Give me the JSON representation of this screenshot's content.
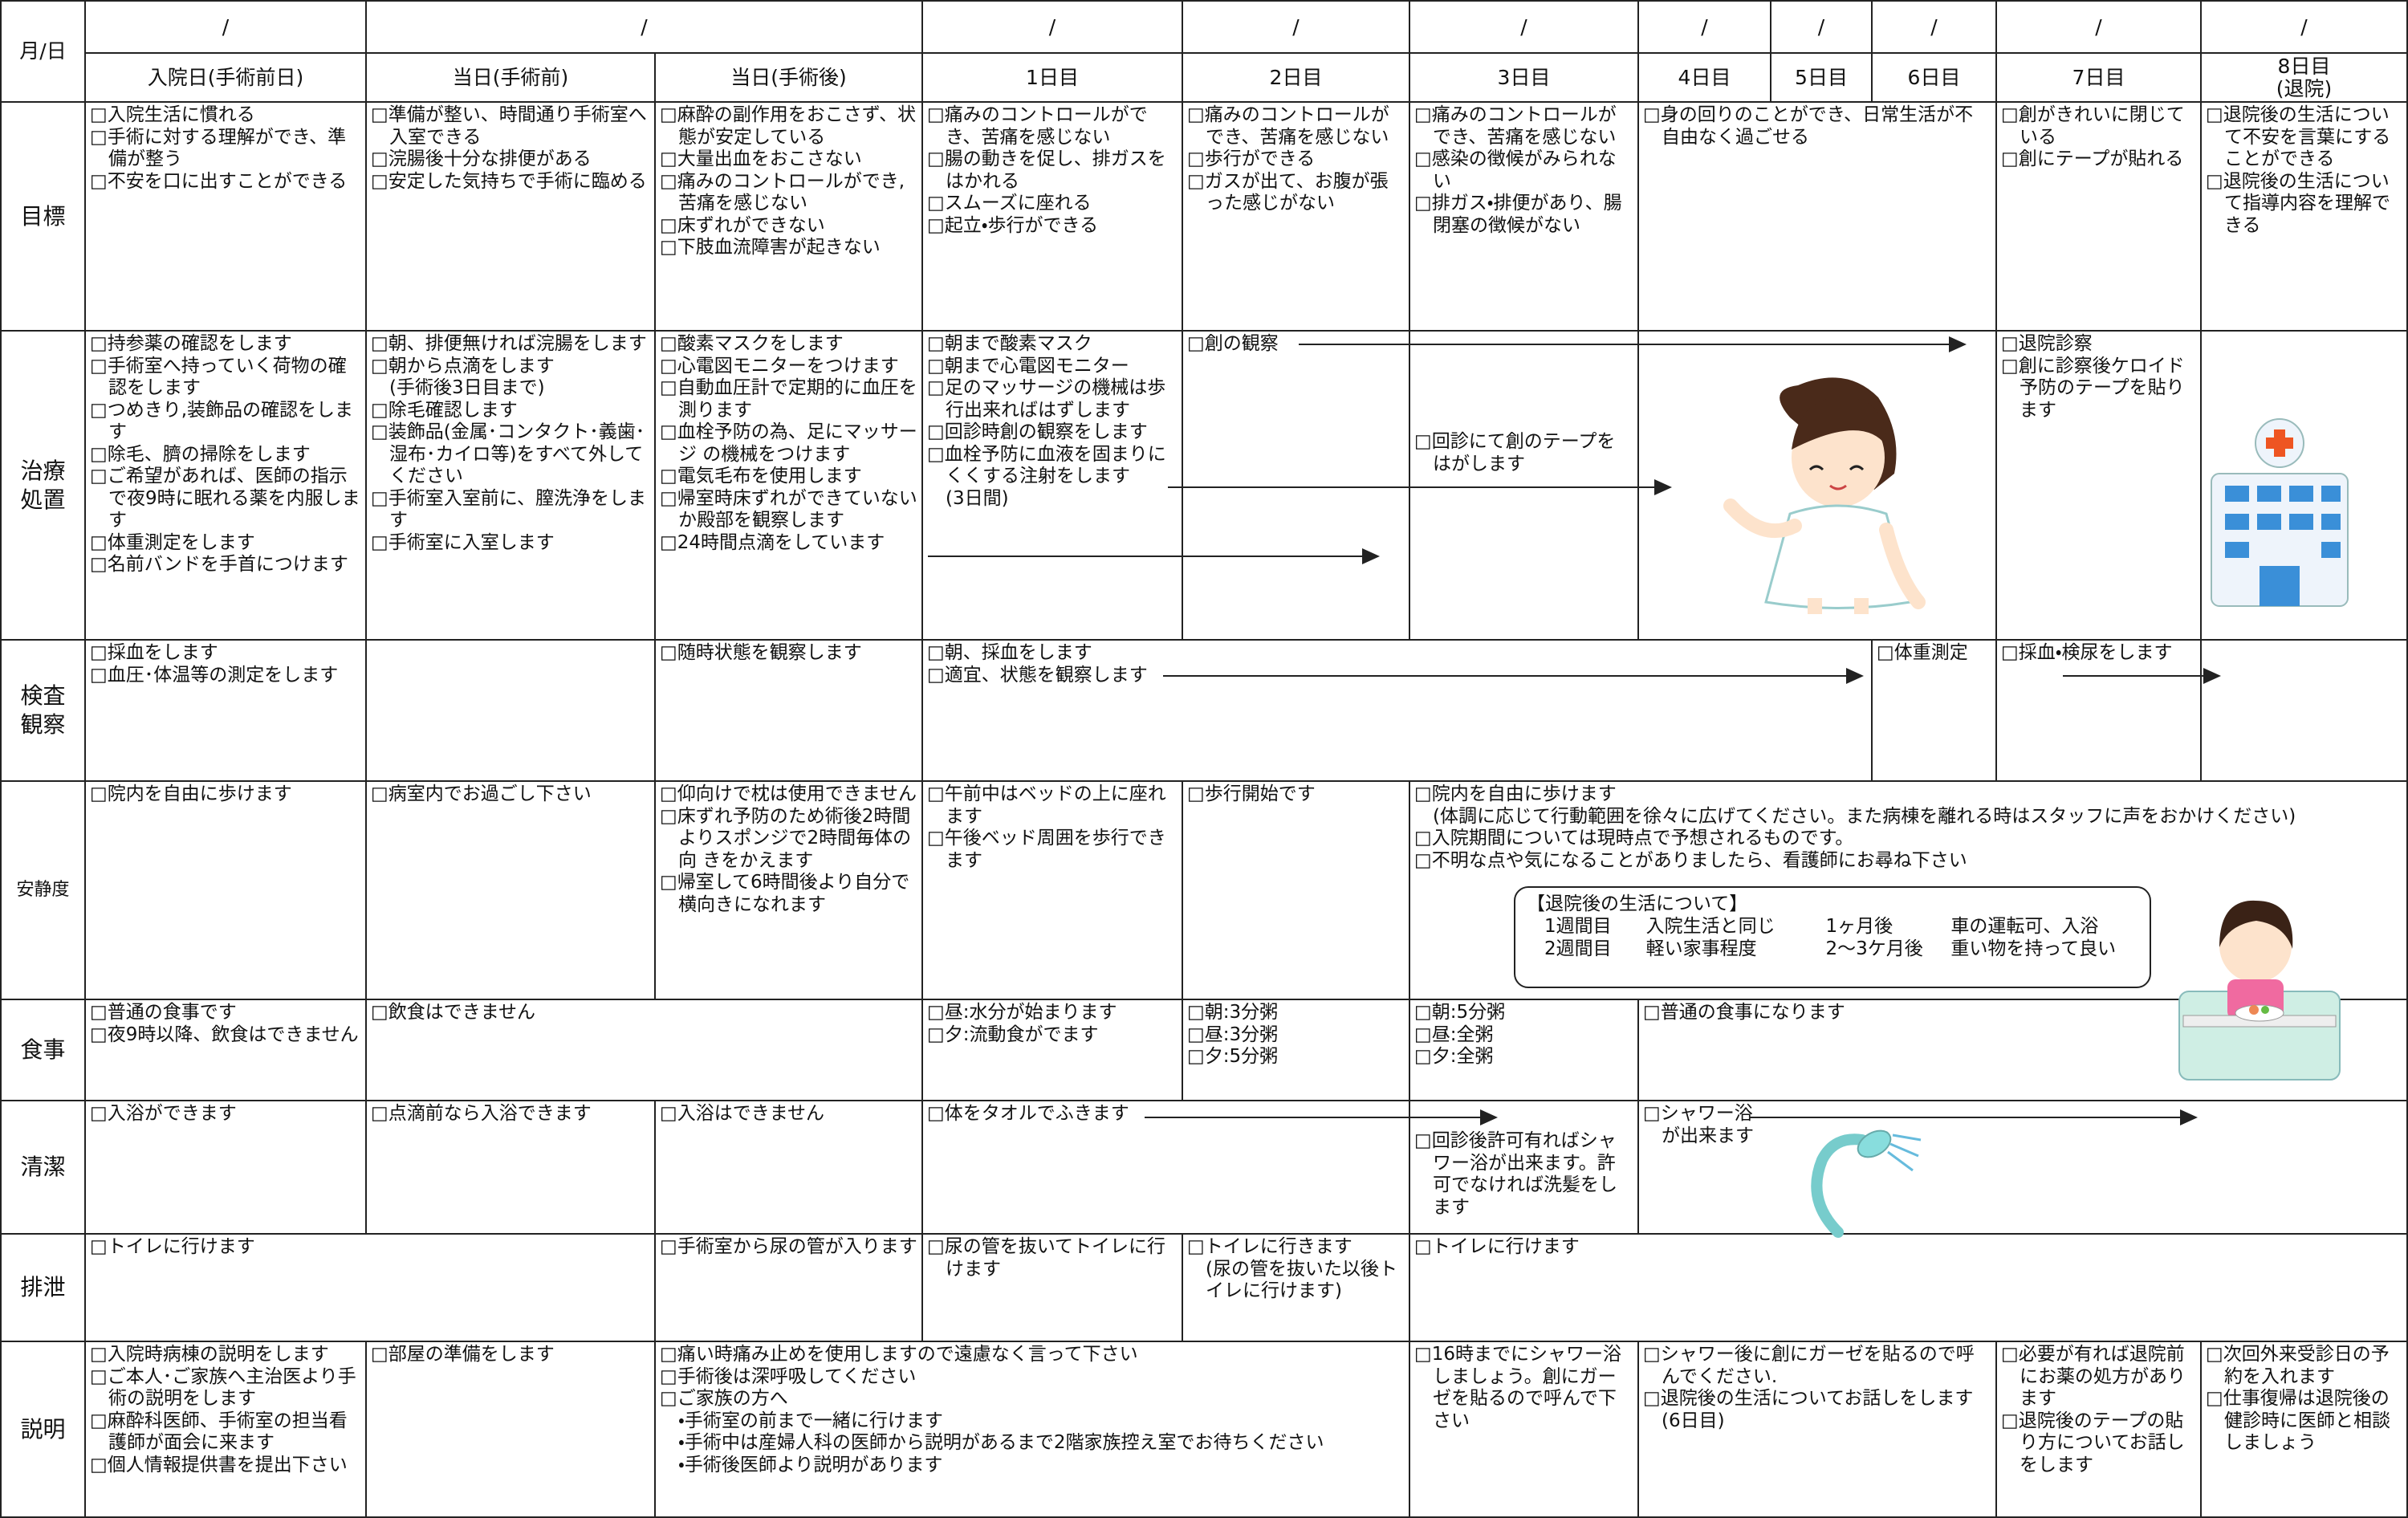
{
  "header": {
    "corner": "月/日",
    "dates": [
      "/",
      "/",
      "/",
      "/",
      "/",
      "/",
      "/",
      "/",
      "/",
      "/"
    ],
    "days": [
      "入院日(手術前日)",
      "当日(手術前)",
      "当日(手術後)",
      "1日目",
      "2日目",
      "3日目",
      "4日目",
      "5日目",
      "6日目",
      "7日目",
      "8日目"
    ],
    "discharge": "(退院)"
  },
  "rows": [
    {
      "label": "目標",
      "cells": [
        [
          "□入院生活に慣れる",
          "□手術に対する理解ができ、準備が整う",
          "□不安を口に出すことができる"
        ],
        [
          "□準備が整い、時間通り手術室へ入室できる",
          "□浣腸後十分な排便がある",
          "□安定した気持ちで手術に臨める"
        ],
        [
          "□麻酔の副作用をおこさず、状態が安定している",
          "□大量出血をおこさない",
          "□痛みのコントロールができ,苦痛を感じない",
          "□床ずれができない",
          "□下肢血流障害が起きない"
        ],
        [
          "□痛みのコントロールができ、苦痛を感じない",
          "□腸の動きを促し、排ガスをはかれる",
          "□スムーズに座れる",
          "□起立・歩行ができる"
        ],
        [
          "□痛みのコントロールができ、苦痛を感じない",
          "□歩行ができる",
          "□ガスが出て、お腹が張った感じがない"
        ],
        [
          "□痛みのコントロールができ、苦痛を感じない",
          "□感染の徴候がみられない",
          "□排ガス・排便があり、腸閉塞の徴候がない"
        ],
        [
          "□身の回りのことができ、日常生活が不自由なく過ごせる"
        ],
        [
          "□創がきれいに閉じている",
          "□創にテープが貼れる"
        ],
        [
          "□退院後の生活について不安を言葉にすることができる",
          "□退院後の生活について指導内容を理解できる"
        ]
      ]
    },
    {
      "label": "治療処置",
      "cells": [
        [
          "□持参薬の確認をします",
          "□手術室へ持っていく荷物の確認をします",
          "□つめきり,装飾品の確認をします",
          "□除毛、臍の掃除をします",
          "□ご希望があれば、医師の指示で夜9時に眠れる薬を内服します",
          "□体重測定をします",
          "□名前バンドを手首につけます"
        ],
        [
          "□朝、排便無ければ浣腸をします",
          "□朝から点滴をします",
          "(手術後3日目まで)",
          "□除毛確認します",
          "□装飾品(金属･コンタクト･義歯･湿布･カイロ等)をすべて外してください",
          "□手術室入室前に、膣洗浄をします",
          "□手術室に入室します"
        ],
        [
          "□酸素マスクをします",
          "□心電図モニターをつけます",
          "□自動血圧計で定期的に血圧を測ります",
          "□血栓予防の為、足にマッサージ の機械をつけます",
          "□電気毛布を使用します",
          "□帰室時床ずれができていないか殿部を観察します",
          "□24時間点滴をしています"
        ],
        [
          "□朝まで酸素マスク",
          "□朝まで心電図モニター",
          "□足のマッサージの機械は歩行出来ればはずします",
          "□回診時創の観察をします",
          "□血栓予防に血液を固まりにくくする注射をします",
          "(3日間)"
        ],
        [
          "□創の観察"
        ],
        [
          "□回診にて創のテープをはがします"
        ],
        [],
        [
          "□退院診察",
          "□創に診察後ケロイド予防のテープを貼ります"
        ],
        []
      ]
    },
    {
      "label": "検査観察",
      "cells": [
        [
          "□採血をします",
          "□血圧･体温等の測定をします"
        ],
        [],
        [
          "□随時状態を観察します"
        ],
        [
          "□朝、採血をします",
          "□適宜、状態を観察します"
        ],
        [
          "□体重測定"
        ],
        [
          "□採血・検尿をします"
        ],
        []
      ]
    },
    {
      "label": "安静度",
      "cells": [
        [
          "□院内を自由に歩けます"
        ],
        [
          "□病室内でお過ごし下さい"
        ],
        [
          "□仰向けで枕は使用できません",
          "□床ずれ予防のため術後2時間よりスポンジで2時間毎体の向 きをかえます",
          "□帰室して6時間後より自分で横向きになれます"
        ],
        [
          "□午前中はベッドの上に座れます",
          "□午後ベッド周囲を歩行できます"
        ],
        [
          "□歩行開始です"
        ],
        [
          "□院内を自由に歩けます",
          "(体調に応じて行動範囲を徐々に広げてください。また病棟を離れる時はスタッフに声をおかけください)",
          "□入院期間については現時点で予想されるものです。",
          "□不明な点や気になることがありましたら、看護師にお尋ね下さい"
        ]
      ]
    },
    {
      "label": "食事",
      "cells": [
        [
          "□普通の食事です",
          "□夜9時以降、飲食はできません"
        ],
        [
          "□飲食はできません"
        ],
        [
          "□昼:水分が始まります",
          "□夕:流動食がでます"
        ],
        [
          "□朝:3分粥",
          "□昼:3分粥",
          "□夕:5分粥"
        ],
        [
          "□朝:5分粥",
          "□昼:全粥",
          "□夕:全粥"
        ],
        [
          "□普通の食事になります"
        ]
      ]
    },
    {
      "label": "清潔",
      "cells": [
        [
          "□入浴ができます"
        ],
        [
          "□点滴前なら入浴できます"
        ],
        [
          "□入浴はできません"
        ],
        [
          "□体をタオルでふきます"
        ],
        [
          "□回診後許可有ればシャワー浴が出来ます。許可でなければ洗髪をします"
        ],
        [
          "□シャワー浴が出来ます"
        ]
      ]
    },
    {
      "label": "排泄",
      "cells": [
        [
          "□トイレに行けます"
        ],
        [
          "□手術室から尿の管が入ります"
        ],
        [
          "□尿の管を抜いてトイレに行けます"
        ],
        [
          "□トイレに行きます",
          "(尿の管を抜いた以後トイレに行けます)"
        ],
        [
          "□トイレに行けます"
        ]
      ]
    },
    {
      "label": "説明",
      "cells": [
        [
          "□入院時病棟の説明をします",
          "□ご本人･ご家族へ主治医より手術の説明をします",
          "□麻酔科医師、手術室の担当看護師が面会に来ます",
          "□個人情報提供書を提出下さい"
        ],
        [
          "□部屋の準備をします"
        ],
        [
          "□痛い時痛み止めを使用しますので遠慮なく言って下さい",
          "□手術後は深呼吸してください",
          "□ご家族の方へ",
          "・手術室の前まで一緒に行けます",
          "・手術中は産婦人科の医師から説明があるまで2階家族控え室でお待ちください",
          "・手術後医師より説明があります"
        ],
        [
          "□16時までにシャワー浴しましょう。創にガーゼを貼るので呼んで下さい"
        ],
        [
          "□シャワー後に創にガーゼを貼るので呼んでください.",
          "□退院後の生活についてお話しをします(6日目)"
        ],
        [
          "□必要が有れば退院前にお薬の処方があります",
          "□退院後のテープの貼り方についてお話しをします"
        ],
        [
          "□次回外来受診日の予約を入れます",
          "□仕事復帰は退院後の健診時に医師と相談しましょう"
        ]
      ]
    }
  ],
  "after_discharge": {
    "title": "【退院後の生活について】",
    "lines": [
      [
        "1週間目",
        "入院生活と同じ",
        "1ヶ月後",
        "車の運転可、入浴"
      ],
      [
        "2週間目",
        "軽い家事程度",
        "2～3ケ月後",
        "重い物を持って良い"
      ]
    ]
  }
}
